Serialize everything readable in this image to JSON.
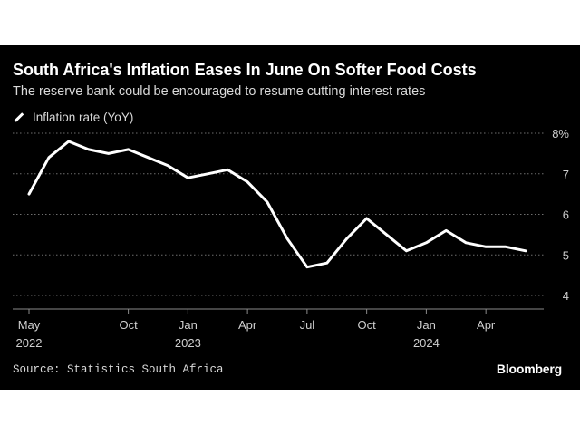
{
  "title": "South Africa's Inflation Eases In June On Softer Food Costs",
  "subtitle": "The reserve bank could be encouraged to resume cutting interest rates",
  "legend": {
    "label": "Inflation rate (YoY)"
  },
  "source": "Source: Statistics South Africa",
  "brand": "Bloomberg",
  "colors": {
    "background": "#000000",
    "line": "#ffffff",
    "grid": "#6e6e6e",
    "text": "#cfcfcf"
  },
  "chart_data": {
    "type": "line",
    "title": "South Africa's Inflation Eases In June On Softer Food Costs",
    "subtitle": "The reserve bank could be encouraged to resume cutting interest rates",
    "xlabel": "",
    "ylabel": "",
    "y_axis_side": "right",
    "ylim": [
      4,
      8
    ],
    "yticks": [
      4,
      5,
      6,
      7,
      8
    ],
    "ytick_labels": [
      "4",
      "5",
      "6",
      "7",
      "8%"
    ],
    "grid": "horizontal dotted",
    "legend_position": "top-left",
    "x": [
      "2022-05",
      "2022-06",
      "2022-07",
      "2022-08",
      "2022-09",
      "2022-10",
      "2022-11",
      "2022-12",
      "2023-01",
      "2023-02",
      "2023-03",
      "2023-04",
      "2023-05",
      "2023-06",
      "2023-07",
      "2023-08",
      "2023-09",
      "2023-10",
      "2023-11",
      "2023-12",
      "2024-01",
      "2024-02",
      "2024-03",
      "2024-04",
      "2024-05",
      "2024-06"
    ],
    "xticks": [
      {
        "x": "2022-05",
        "label": "May",
        "year": "2022"
      },
      {
        "x": "2022-10",
        "label": "Oct",
        "year": ""
      },
      {
        "x": "2023-01",
        "label": "Jan",
        "year": "2023"
      },
      {
        "x": "2023-04",
        "label": "Apr",
        "year": ""
      },
      {
        "x": "2023-07",
        "label": "Jul",
        "year": ""
      },
      {
        "x": "2023-10",
        "label": "Oct",
        "year": ""
      },
      {
        "x": "2024-01",
        "label": "Jan",
        "year": "2024"
      },
      {
        "x": "2024-04",
        "label": "Apr",
        "year": ""
      }
    ],
    "series": [
      {
        "name": "Inflation rate (YoY)",
        "values": [
          6.5,
          7.4,
          7.8,
          7.6,
          7.5,
          7.6,
          7.4,
          7.2,
          6.9,
          7.0,
          7.1,
          6.8,
          6.3,
          5.4,
          4.7,
          4.8,
          5.4,
          5.9,
          5.5,
          5.1,
          5.3,
          5.6,
          5.3,
          5.2,
          5.2,
          5.1
        ]
      }
    ]
  }
}
